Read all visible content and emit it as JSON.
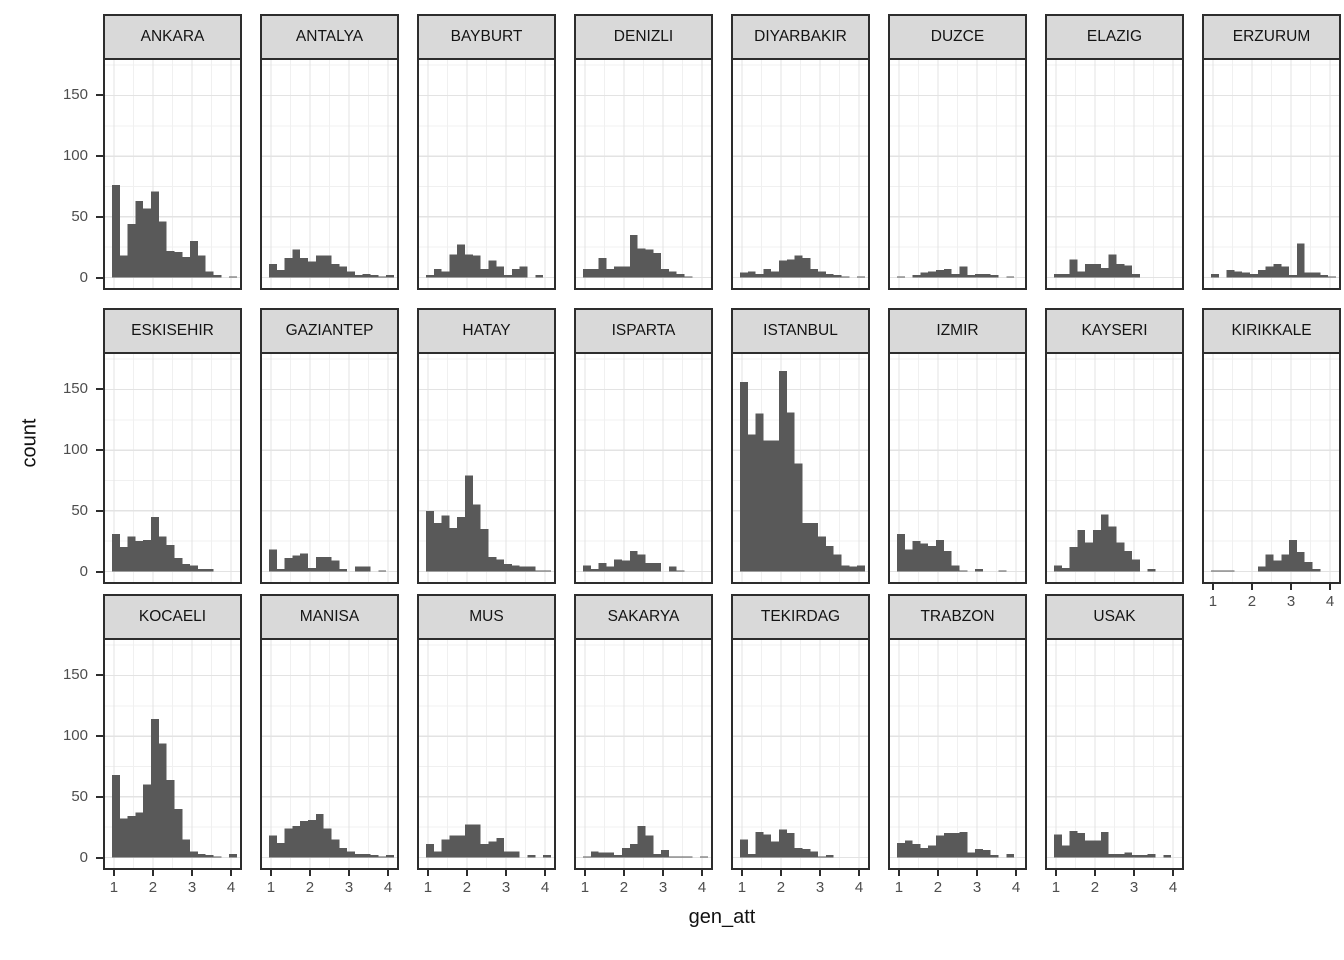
{
  "figure": {
    "y_axis_title": "count",
    "x_axis_title": "gen_att",
    "y_tick_labels": [
      "0",
      "50",
      "100",
      "150"
    ],
    "x_tick_labels": [
      "1",
      "2",
      "3",
      "4"
    ]
  },
  "colors": {
    "bar_fill": "#595959",
    "strip_background": "#d9d9d9",
    "panel_border": "#2d2d2d",
    "grid_major": "#e3e3e3",
    "grid_minor": "#f0f0f0",
    "axis_text": "#4d4d4d",
    "axis_title_text": "#111111"
  },
  "chart_data": {
    "type": "bar",
    "subtype": "faceted-histogram",
    "title": "",
    "xlabel": "gen_att",
    "ylabel": "count",
    "x_ticks": [
      1,
      2,
      3,
      4
    ],
    "y_ticks": [
      0,
      50,
      100,
      150
    ],
    "ylim": [
      0,
      178
    ],
    "xlim": [
      0.72,
      4.28
    ],
    "bin_start": 0.95,
    "bin_width": 0.2,
    "grid": "on",
    "facet_rows": [
      8,
      8,
      7
    ],
    "facets": [
      {
        "name": "ANKARA",
        "counts": [
          76,
          18,
          44,
          63,
          57,
          71,
          46,
          22,
          21,
          17,
          30,
          18,
          5,
          2,
          0,
          1
        ]
      },
      {
        "name": "ANTALYA",
        "counts": [
          11,
          6,
          16,
          23,
          16,
          13,
          18,
          18,
          11,
          9,
          5,
          2,
          3,
          2,
          1,
          2
        ]
      },
      {
        "name": "BAYBURT",
        "counts": [
          2,
          7,
          5,
          19,
          27,
          19,
          18,
          7,
          14,
          9,
          2,
          7,
          9,
          0,
          2,
          0
        ]
      },
      {
        "name": "DENIZLI",
        "counts": [
          7,
          7,
          16,
          7,
          9,
          9,
          35,
          24,
          23,
          20,
          7,
          5,
          3,
          1,
          0,
          0
        ]
      },
      {
        "name": "DIYARBAKIR",
        "counts": [
          4,
          5,
          3,
          7,
          5,
          14,
          15,
          18,
          16,
          7,
          5,
          3,
          2,
          1,
          0,
          1
        ]
      },
      {
        "name": "DUZCE",
        "counts": [
          1,
          0,
          2,
          4,
          5,
          6,
          7,
          3,
          9,
          2,
          3,
          3,
          2,
          0,
          1,
          0
        ]
      },
      {
        "name": "ELAZIG",
        "counts": [
          3,
          3,
          15,
          5,
          11,
          11,
          8,
          19,
          11,
          10,
          3,
          0,
          0,
          0,
          0,
          0
        ]
      },
      {
        "name": "ERZURUM",
        "counts": [
          3,
          0,
          6,
          5,
          4,
          3,
          6,
          9,
          11,
          9,
          2,
          28,
          4,
          4,
          2,
          1
        ]
      },
      {
        "name": "ESKISEHIR",
        "counts": [
          31,
          20,
          29,
          25,
          26,
          45,
          29,
          22,
          11,
          6,
          5,
          2,
          2,
          0,
          0,
          0
        ]
      },
      {
        "name": "GAZIANTEP",
        "counts": [
          18,
          2,
          11,
          13,
          15,
          3,
          12,
          12,
          9,
          2,
          0,
          4,
          4,
          0,
          1,
          0
        ]
      },
      {
        "name": "HATAY",
        "counts": [
          50,
          40,
          46,
          36,
          45,
          79,
          55,
          35,
          12,
          10,
          6,
          5,
          4,
          4,
          1,
          1
        ]
      },
      {
        "name": "ISPARTA",
        "counts": [
          5,
          2,
          7,
          4,
          10,
          9,
          17,
          14,
          7,
          7,
          0,
          4,
          1,
          0,
          0,
          0
        ]
      },
      {
        "name": "ISTANBUL",
        "counts": [
          156,
          113,
          130,
          108,
          108,
          165,
          131,
          89,
          40,
          40,
          29,
          21,
          14,
          5,
          4,
          5
        ]
      },
      {
        "name": "IZMIR",
        "counts": [
          31,
          18,
          25,
          23,
          21,
          26,
          17,
          5,
          1,
          0,
          2,
          0,
          0,
          1,
          0,
          0
        ]
      },
      {
        "name": "KAYSERI",
        "counts": [
          5,
          3,
          20,
          34,
          24,
          34,
          47,
          37,
          24,
          17,
          10,
          0,
          2,
          0,
          0,
          0
        ]
      },
      {
        "name": "KIRIKKALE",
        "counts": [
          1,
          1,
          1,
          0,
          0,
          0,
          4,
          14,
          9,
          14,
          26,
          16,
          8,
          2,
          0,
          0
        ]
      },
      {
        "name": "KOCAELI",
        "counts": [
          68,
          32,
          34,
          37,
          60,
          114,
          94,
          64,
          40,
          15,
          5,
          3,
          2,
          1,
          0,
          3
        ]
      },
      {
        "name": "MANISA",
        "counts": [
          18,
          12,
          24,
          26,
          30,
          31,
          36,
          24,
          15,
          8,
          5,
          3,
          3,
          2,
          1,
          2
        ]
      },
      {
        "name": "MUS",
        "counts": [
          11,
          5,
          15,
          18,
          18,
          27,
          27,
          11,
          13,
          16,
          5,
          5,
          0,
          2,
          0,
          2
        ]
      },
      {
        "name": "SAKARYA",
        "counts": [
          1,
          5,
          4,
          4,
          2,
          8,
          11,
          26,
          18,
          3,
          6,
          1,
          1,
          1,
          0,
          1
        ]
      },
      {
        "name": "TEKIRDAG",
        "counts": [
          15,
          3,
          21,
          19,
          13,
          23,
          20,
          8,
          7,
          5,
          1,
          2,
          0,
          0,
          0,
          0
        ]
      },
      {
        "name": "TRABZON",
        "counts": [
          12,
          14,
          11,
          8,
          10,
          18,
          20,
          20,
          21,
          4,
          7,
          6,
          2,
          0,
          3,
          0
        ]
      },
      {
        "name": "USAK",
        "counts": [
          19,
          10,
          22,
          20,
          14,
          14,
          21,
          3,
          3,
          4,
          2,
          2,
          3,
          0,
          2,
          0
        ]
      }
    ]
  }
}
